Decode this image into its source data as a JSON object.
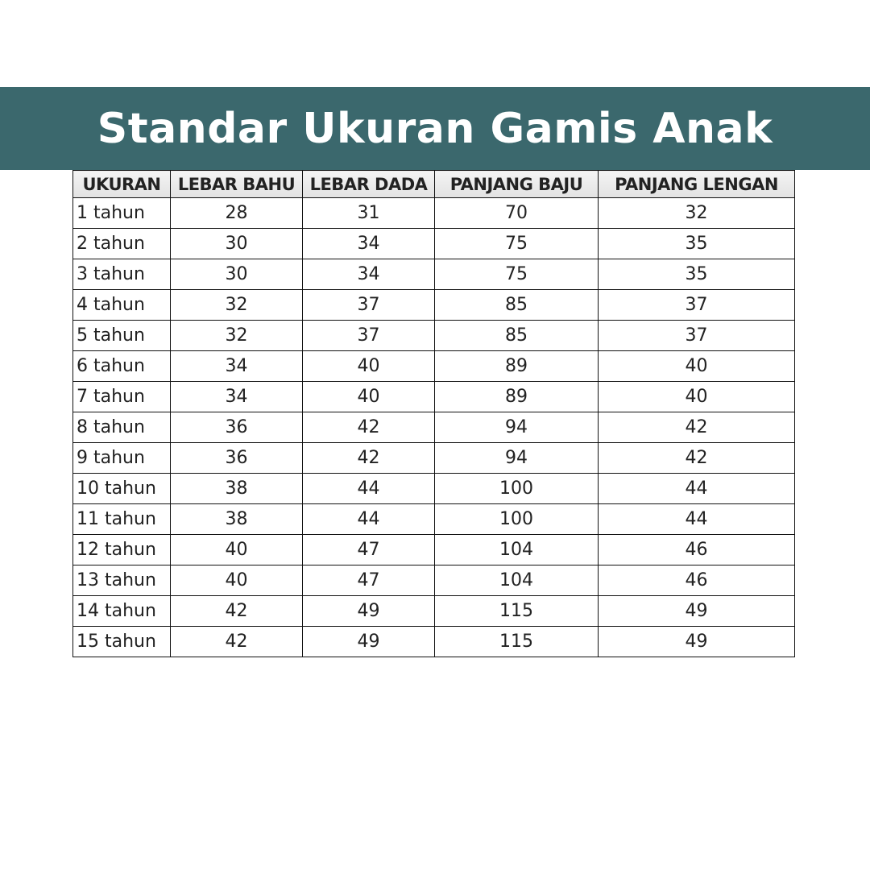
{
  "title": "Standar Ukuran Gamis Anak",
  "banner_color": "#3b686d",
  "table": {
    "headers": [
      "UKURAN",
      "LEBAR BAHU",
      "LEBAR DADA",
      "PANJANG BAJU",
      "PANJANG LENGAN"
    ],
    "rows": [
      [
        "1 tahun",
        "28",
        "31",
        "70",
        "32"
      ],
      [
        "2 tahun",
        "30",
        "34",
        "75",
        "35"
      ],
      [
        "3 tahun",
        "30",
        "34",
        "75",
        "35"
      ],
      [
        "4 tahun",
        "32",
        "37",
        "85",
        "37"
      ],
      [
        "5 tahun",
        "32",
        "37",
        "85",
        "37"
      ],
      [
        "6 tahun",
        "34",
        "40",
        "89",
        "40"
      ],
      [
        "7 tahun",
        "34",
        "40",
        "89",
        "40"
      ],
      [
        "8 tahun",
        "36",
        "42",
        "94",
        "42"
      ],
      [
        "9 tahun",
        "36",
        "42",
        "94",
        "42"
      ],
      [
        "10 tahun",
        "38",
        "44",
        "100",
        "44"
      ],
      [
        "11 tahun",
        "38",
        "44",
        "100",
        "44"
      ],
      [
        "12 tahun",
        "40",
        "47",
        "104",
        "46"
      ],
      [
        "13 tahun",
        "40",
        "47",
        "104",
        "46"
      ],
      [
        "14 tahun",
        "42",
        "49",
        "115",
        "49"
      ],
      [
        "15 tahun",
        "42",
        "49",
        "115",
        "49"
      ]
    ]
  }
}
